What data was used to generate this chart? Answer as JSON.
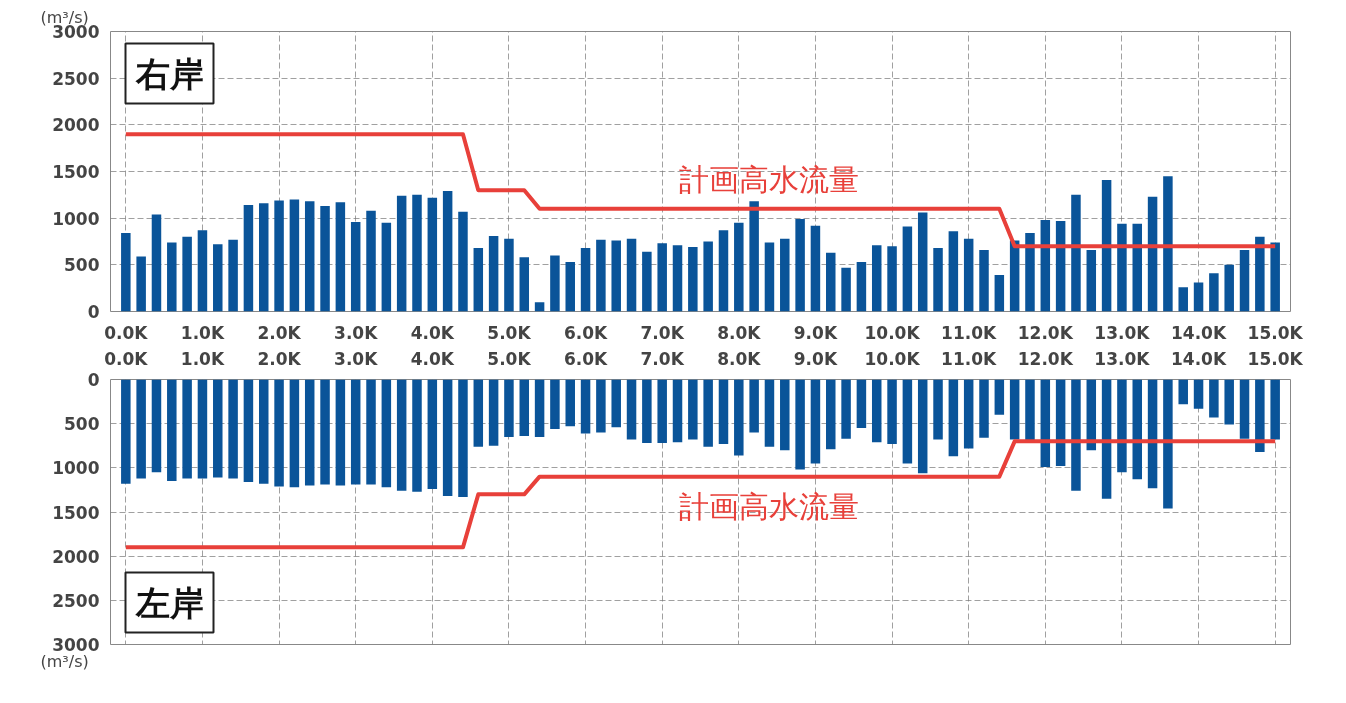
{
  "chart_data": [
    {
      "type": "bar",
      "title": "右岸",
      "ylabel": "(m³/s)",
      "grid": true,
      "x": [
        0.0,
        0.2,
        0.4,
        0.6,
        0.8,
        1.0,
        1.2,
        1.4,
        1.6,
        1.8,
        2.0,
        2.2,
        2.4,
        2.6,
        2.8,
        3.0,
        3.2,
        3.4,
        3.6,
        3.8,
        4.0,
        4.2,
        4.4,
        4.6,
        4.8,
        5.0,
        5.2,
        5.4,
        5.6,
        5.8,
        6.0,
        6.2,
        6.4,
        6.6,
        6.8,
        7.0,
        7.2,
        7.4,
        7.6,
        7.8,
        8.0,
        8.2,
        8.4,
        8.6,
        8.8,
        9.0,
        9.2,
        9.4,
        9.6,
        9.8,
        10.0,
        10.2,
        10.4,
        10.6,
        10.8,
        11.0,
        11.2,
        11.4,
        11.6,
        11.8,
        12.0,
        12.2,
        12.4,
        12.6,
        12.8,
        13.0,
        13.2,
        13.4,
        13.6,
        13.8,
        14.0,
        14.2,
        14.4,
        14.6,
        14.8,
        15.0
      ],
      "xlim": [
        -0.2,
        15.2
      ],
      "xticks": [
        {
          "value": 0,
          "label": "0.0K"
        },
        {
          "value": 1,
          "label": "1.0K"
        },
        {
          "value": 2,
          "label": "2.0K"
        },
        {
          "value": 3,
          "label": "3.0K"
        },
        {
          "value": 4,
          "label": "4.0K"
        },
        {
          "value": 5,
          "label": "5.0K"
        },
        {
          "value": 6,
          "label": "6.0K"
        },
        {
          "value": 7,
          "label": "7.0K"
        },
        {
          "value": 8,
          "label": "8.0K"
        },
        {
          "value": 9,
          "label": "9.0K"
        },
        {
          "value": 10,
          "label": "10.0K"
        },
        {
          "value": 11,
          "label": "11.0K"
        },
        {
          "value": 12,
          "label": "12.0K"
        },
        {
          "value": 13,
          "label": "13.0K"
        },
        {
          "value": 14,
          "label": "14.0K"
        },
        {
          "value": 15,
          "label": "15.0K"
        }
      ],
      "ylim": [
        0,
        3000
      ],
      "yticks": [
        0,
        500,
        1000,
        1500,
        2000,
        2500,
        3000
      ],
      "series": [
        {
          "color": "#0a5499",
          "values": [
            840,
            590,
            1040,
            740,
            800,
            870,
            720,
            770,
            1140,
            1160,
            1190,
            1200,
            1180,
            1130,
            1170,
            960,
            1080,
            950,
            1240,
            1250,
            1220,
            1290,
            1070,
            680,
            810,
            780,
            580,
            100,
            600,
            530,
            680,
            770,
            760,
            780,
            640,
            730,
            710,
            690,
            750,
            870,
            950,
            1180,
            740,
            780,
            990,
            920,
            630,
            470,
            530,
            710,
            700,
            910,
            1060,
            680,
            860,
            780,
            660,
            390,
            760,
            840,
            980,
            970,
            1250,
            660,
            1410,
            940,
            940,
            1230,
            1450,
            260,
            310,
            410,
            500,
            660,
            800,
            740
          ]
        },
        {
          "type": "line",
          "name": "計画高水流量",
          "color": "#e8403a",
          "x": [
            0,
            4.4,
            4.6,
            5.2,
            5.4,
            11.4,
            11.6,
            15.0
          ],
          "values": [
            1900,
            1900,
            1300,
            1300,
            1100,
            1100,
            700,
            700
          ]
        }
      ]
    },
    {
      "type": "bar",
      "title": "左岸",
      "ylabel": "(m³/s)",
      "grid": true,
      "x": [
        0.0,
        0.2,
        0.4,
        0.6,
        0.8,
        1.0,
        1.2,
        1.4,
        1.6,
        1.8,
        2.0,
        2.2,
        2.4,
        2.6,
        2.8,
        3.0,
        3.2,
        3.4,
        3.6,
        3.8,
        4.0,
        4.2,
        4.4,
        4.6,
        4.8,
        5.0,
        5.2,
        5.4,
        5.6,
        5.8,
        6.0,
        6.2,
        6.4,
        6.6,
        6.8,
        7.0,
        7.2,
        7.4,
        7.6,
        7.8,
        8.0,
        8.2,
        8.4,
        8.6,
        8.8,
        9.0,
        9.2,
        9.4,
        9.6,
        9.8,
        10.0,
        10.2,
        10.4,
        10.6,
        10.8,
        11.0,
        11.2,
        11.4,
        11.6,
        11.8,
        12.0,
        12.2,
        12.4,
        12.6,
        12.8,
        13.0,
        13.2,
        13.4,
        13.6,
        13.8,
        14.0,
        14.2,
        14.4,
        14.6,
        14.8,
        15.0
      ],
      "xlim": [
        -0.2,
        15.2
      ],
      "xticks": [
        {
          "value": 0,
          "label": "0.0K"
        },
        {
          "value": 1,
          "label": "1.0K"
        },
        {
          "value": 2,
          "label": "2.0K"
        },
        {
          "value": 3,
          "label": "3.0K"
        },
        {
          "value": 4,
          "label": "4.0K"
        },
        {
          "value": 5,
          "label": "5.0K"
        },
        {
          "value": 6,
          "label": "6.0K"
        },
        {
          "value": 7,
          "label": "7.0K"
        },
        {
          "value": 8,
          "label": "8.0K"
        },
        {
          "value": 9,
          "label": "9.0K"
        },
        {
          "value": 10,
          "label": "10.0K"
        },
        {
          "value": 11,
          "label": "11.0K"
        },
        {
          "value": 12,
          "label": "12.0K"
        },
        {
          "value": 13,
          "label": "13.0K"
        },
        {
          "value": 14,
          "label": "14.0K"
        },
        {
          "value": 15,
          "label": "15.0K"
        }
      ],
      "ylim": [
        3000,
        0
      ],
      "yticks": [
        0,
        500,
        1000,
        1500,
        2000,
        2500,
        3000
      ],
      "series": [
        {
          "color": "#0a5499",
          "values": [
            1180,
            1120,
            1050,
            1150,
            1120,
            1120,
            1110,
            1120,
            1160,
            1180,
            1210,
            1220,
            1200,
            1190,
            1200,
            1190,
            1190,
            1220,
            1260,
            1270,
            1240,
            1320,
            1330,
            760,
            750,
            650,
            640,
            650,
            560,
            530,
            610,
            600,
            540,
            680,
            720,
            720,
            710,
            680,
            760,
            730,
            860,
            600,
            760,
            800,
            1020,
            950,
            790,
            670,
            550,
            710,
            730,
            950,
            1060,
            680,
            870,
            780,
            660,
            400,
            680,
            690,
            990,
            980,
            1260,
            800,
            1350,
            1050,
            1130,
            1230,
            1460,
            280,
            330,
            430,
            510,
            670,
            820,
            680
          ]
        },
        {
          "type": "line",
          "name": "計画高水流量",
          "color": "#e8403a",
          "x": [
            0,
            4.4,
            4.6,
            5.2,
            5.4,
            11.4,
            11.6,
            15.0
          ],
          "values": [
            1900,
            1900,
            1300,
            1300,
            1100,
            1100,
            700,
            700
          ]
        }
      ]
    }
  ]
}
